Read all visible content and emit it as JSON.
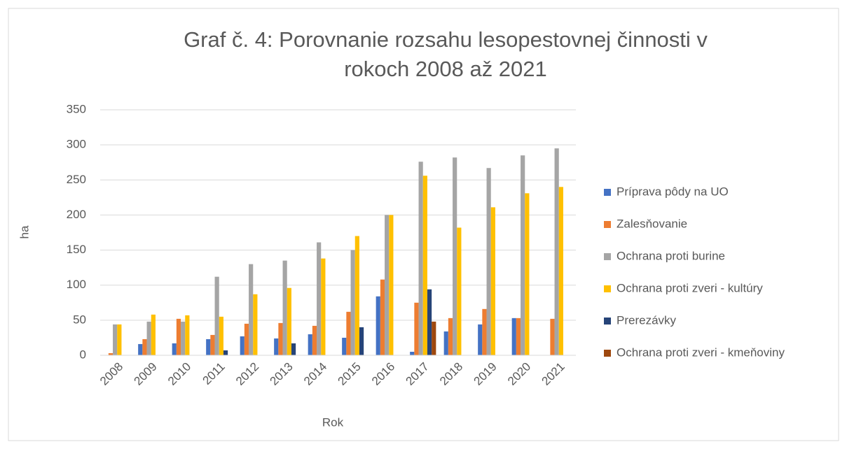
{
  "chart_data": {
    "type": "bar",
    "title": "Graf č. 4: Porovnanie rozsahu lesopestovnej činnosti v rokoch 2008 až 2021",
    "xlabel": "Rok",
    "ylabel": "ha",
    "categories": [
      "2008",
      "2009",
      "2010",
      "2011",
      "2012",
      "2013",
      "2014",
      "2015",
      "2016",
      "2017",
      "2018",
      "2019",
      "2020",
      "2021"
    ],
    "series": [
      {
        "name": "Príprava pôdy na UO",
        "color": "#4472c4",
        "values": [
          0,
          16,
          17,
          23,
          27,
          24,
          30,
          25,
          84,
          5,
          34,
          44,
          53,
          0
        ]
      },
      {
        "name": "Zalesňovanie",
        "color": "#ed7d31",
        "values": [
          3,
          23,
          52,
          29,
          45,
          46,
          42,
          62,
          108,
          75,
          53,
          66,
          53,
          52
        ]
      },
      {
        "name": "Ochrana proti burine",
        "color": "#a5a5a5",
        "values": [
          44,
          48,
          48,
          112,
          130,
          135,
          161,
          150,
          200,
          276,
          282,
          267,
          285,
          295
        ]
      },
      {
        "name": "Ochrana proti zveri - kultúry",
        "color": "#ffc000",
        "values": [
          44,
          58,
          57,
          55,
          87,
          96,
          138,
          170,
          200,
          256,
          182,
          211,
          231,
          240
        ]
      },
      {
        "name": "Prerezávky",
        "color": "#264478",
        "values": [
          0,
          0,
          0,
          7,
          0,
          17,
          0,
          40,
          0,
          94,
          0,
          0,
          0,
          0
        ]
      },
      {
        "name": "Ochrana proti zveri - kmeňoviny",
        "color": "#9e480e",
        "values": [
          0,
          0,
          0,
          0,
          0,
          0,
          0,
          0,
          0,
          48,
          0,
          0,
          0,
          0
        ]
      }
    ],
    "ylim": [
      0,
      350
    ],
    "yticks": [
      0,
      50,
      100,
      150,
      200,
      250,
      300,
      350
    ],
    "grid": true,
    "legend": "right"
  }
}
